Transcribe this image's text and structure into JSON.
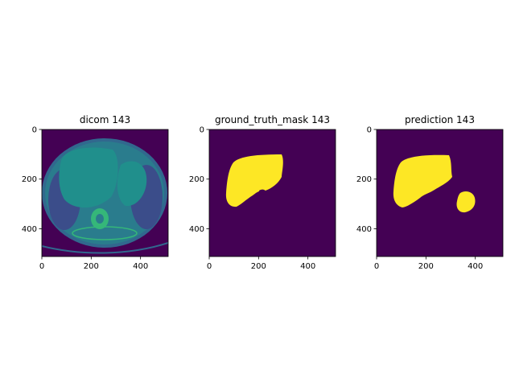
{
  "colors": {
    "background": "#440154",
    "mask": "#fde725",
    "ct_body": "#2a7c8d",
    "ct_soft": "#208f8c",
    "ct_dark": "#3b4d8a",
    "ct_bright": "#35b779",
    "ct_edge": "#31688e"
  },
  "chart_data": [
    {
      "type": "image",
      "title": "dicom 143",
      "xlim": [
        0,
        512
      ],
      "ylim": [
        512,
        0
      ],
      "xticks": [
        0,
        200,
        400
      ],
      "yticks": [
        0,
        200,
        400
      ],
      "grid": false
    },
    {
      "type": "image",
      "title": "ground_truth_mask 143",
      "xlim": [
        0,
        512
      ],
      "ylim": [
        512,
        0
      ],
      "xticks": [
        0,
        200,
        400
      ],
      "yticks": [
        0,
        200,
        400
      ],
      "grid": false
    },
    {
      "type": "image",
      "title": "prediction 143",
      "xlim": [
        0,
        512
      ],
      "ylim": [
        512,
        0
      ],
      "xticks": [
        0,
        200,
        400
      ],
      "yticks": [
        0,
        200,
        400
      ],
      "grid": false
    }
  ]
}
